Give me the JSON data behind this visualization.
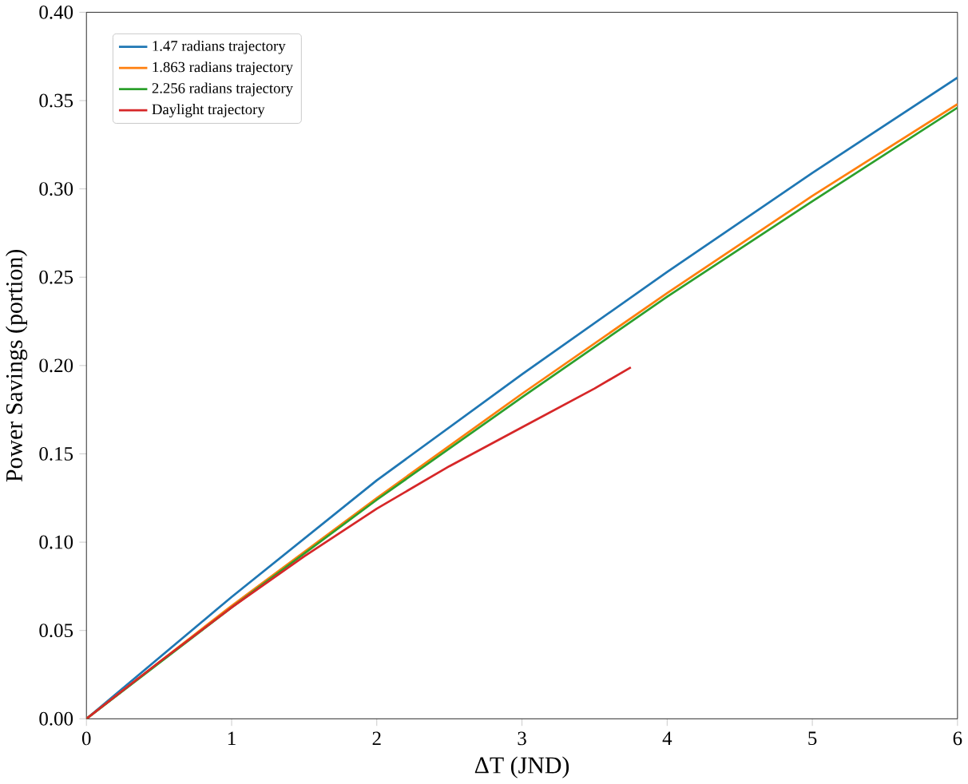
{
  "chart_data": {
    "type": "line",
    "xlabel": "ΔT (JND)",
    "ylabel": "Power Savings (portion)",
    "xlim": [
      0,
      6
    ],
    "ylim": [
      0,
      0.4
    ],
    "xticks": [
      0,
      1,
      2,
      3,
      4,
      5,
      6
    ],
    "yticks": [
      {
        "value": 0,
        "label": "0.00"
      },
      {
        "value": 0.05,
        "label": "0.05"
      },
      {
        "value": 0.1,
        "label": "0.10"
      },
      {
        "value": 0.15,
        "label": "0.15"
      },
      {
        "value": 0.2,
        "label": "0.20"
      },
      {
        "value": 0.25,
        "label": "0.25"
      },
      {
        "value": 0.3,
        "label": "0.30"
      },
      {
        "value": 0.35,
        "label": "0.35"
      },
      {
        "value": 0.4,
        "label": "0.40"
      }
    ],
    "legend": "top left",
    "marker": "none",
    "line_style": "solid",
    "series": [
      {
        "name": "1.47 radians trajectory",
        "color": "#1f77b4",
        "x": [
          0,
          1,
          2,
          3,
          4,
          5,
          6
        ],
        "values": [
          0,
          0.069,
          0.135,
          0.195,
          0.253,
          0.309,
          0.363
        ]
      },
      {
        "name": "1.863 radians trajectory",
        "color": "#ff7f0e",
        "x": [
          0,
          1,
          2,
          3,
          4,
          5,
          6
        ],
        "values": [
          0,
          0.064,
          0.125,
          0.184,
          0.241,
          0.296,
          0.348
        ]
      },
      {
        "name": "2.256 radians trajectory",
        "color": "#2ca02c",
        "x": [
          0,
          1,
          2,
          3,
          4,
          5,
          6
        ],
        "values": [
          0,
          0.063,
          0.124,
          0.182,
          0.239,
          0.293,
          0.346
        ]
      },
      {
        "name": "Daylight trajectory",
        "color": "#d62728",
        "x": [
          0,
          0.5,
          1,
          1.5,
          2,
          2.5,
          3,
          3.5,
          3.75
        ],
        "values": [
          0,
          0.032,
          0.063,
          0.092,
          0.119,
          0.143,
          0.165,
          0.187,
          0.199
        ]
      }
    ]
  }
}
